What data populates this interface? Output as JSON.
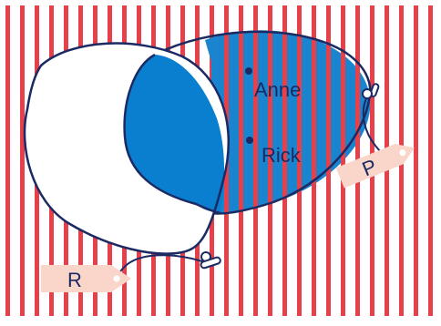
{
  "diagram": {
    "labels": {
      "balloon_r_tag": "R",
      "balloon_p_tag": "P",
      "point_anne": "Anne",
      "point_rick": "Rick"
    },
    "colors": {
      "stripe": "#e8404a",
      "background": "#ffffff",
      "balloon_outline": "#1c2a63",
      "balloon_r_fill": "#ffffff",
      "intersection_fill": "#0a7fd0",
      "balloon_p_fill": "#1b84cf",
      "tag_fill": "#f9d6c9",
      "text": "#1c2a63"
    }
  }
}
